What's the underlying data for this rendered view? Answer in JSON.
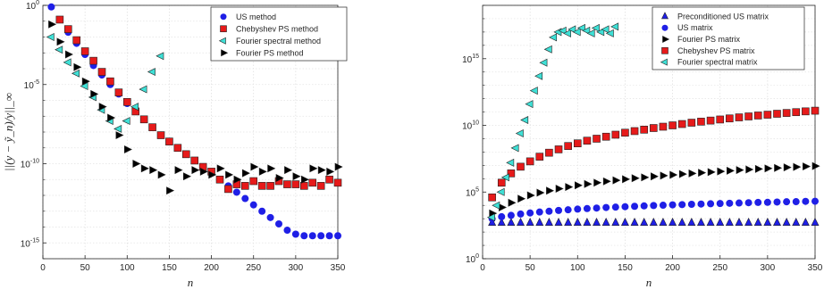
{
  "chart_data": [
    {
      "type": "scatter",
      "title": "",
      "xlabel": "n",
      "ylabel": "||(y − ỹ_n)/y||_∞",
      "x_scale": "linear",
      "y_scale": "log",
      "xlim": [
        0,
        350
      ],
      "ylim_exp": [
        -16,
        0
      ],
      "x_ticks": [
        "0",
        "50",
        "100",
        "150",
        "200",
        "250",
        "300",
        "350"
      ],
      "y_ticks": [
        {
          "base": "10",
          "exp": "0",
          "value": 0
        },
        {
          "base": "10",
          "exp": "-5",
          "value": -5
        },
        {
          "base": "10",
          "exp": "-10",
          "value": -10
        },
        {
          "base": "10",
          "exp": "-15",
          "value": -15
        }
      ],
      "grid": true,
      "legend_position": "top-right",
      "series": [
        {
          "name": "US method",
          "marker": "circle",
          "color": "#1f1fe6",
          "x": [
            10,
            20,
            30,
            40,
            50,
            60,
            70,
            80,
            90,
            100,
            110,
            120,
            130,
            140,
            150,
            160,
            170,
            180,
            190,
            200,
            210,
            220,
            230,
            240,
            250,
            260,
            270,
            280,
            290,
            300,
            310,
            320,
            330,
            340,
            350
          ],
          "log10y": [
            -0.1,
            -0.9,
            -1.7,
            -2.4,
            -3.1,
            -3.8,
            -4.4,
            -5.0,
            -5.6,
            -6.2,
            -6.7,
            -7.2,
            -7.7,
            -8.2,
            -8.6,
            -9.0,
            -9.4,
            -9.8,
            -10.2,
            -10.6,
            -11.0,
            -11.4,
            -11.8,
            -12.2,
            -12.6,
            -13.0,
            -13.4,
            -13.8,
            -14.2,
            -14.45,
            -14.55,
            -14.55,
            -14.55,
            -14.55,
            -14.55
          ]
        },
        {
          "name": "Chebyshev PS method",
          "marker": "square",
          "color": "#e61a1a",
          "x": [
            20,
            30,
            40,
            50,
            60,
            70,
            80,
            90,
            100,
            110,
            120,
            130,
            140,
            150,
            160,
            170,
            180,
            190,
            200,
            210,
            220,
            230,
            240,
            250,
            260,
            270,
            280,
            290,
            300,
            310,
            320,
            330,
            340,
            350
          ],
          "log10y": [
            -0.9,
            -1.5,
            -2.2,
            -2.9,
            -3.5,
            -4.2,
            -4.8,
            -5.5,
            -6.1,
            -6.7,
            -7.2,
            -7.7,
            -8.2,
            -8.6,
            -9.0,
            -9.4,
            -9.8,
            -10.2,
            -10.5,
            -11.0,
            -11.6,
            -11.3,
            -11.4,
            -11.1,
            -11.4,
            -11.4,
            -11.1,
            -11.3,
            -11.3,
            -11.4,
            -11.2,
            -11.4,
            -11.0,
            -11.2
          ]
        },
        {
          "name": "Fourier spectral method",
          "marker": "triangle-left",
          "color": "#3fe0d6",
          "x": [
            10,
            20,
            30,
            40,
            50,
            60,
            70,
            80,
            90,
            100,
            110,
            120,
            130,
            140
          ],
          "log10y": [
            -2.0,
            -2.8,
            -3.6,
            -4.3,
            -5.1,
            -5.8,
            -6.6,
            -7.3,
            -7.8,
            -7.3,
            -6.4,
            -5.3,
            -4.2,
            -3.2
          ]
        },
        {
          "name": "Fourier PS method",
          "marker": "triangle-right",
          "color": "#000000",
          "x": [
            10,
            20,
            30,
            40,
            50,
            60,
            70,
            80,
            90,
            100,
            110,
            120,
            130,
            140,
            150,
            160,
            170,
            180,
            190,
            200,
            210,
            220,
            230,
            240,
            250,
            260,
            270,
            280,
            290,
            300,
            310,
            320,
            330,
            340,
            350
          ],
          "log10y": [
            -1.2,
            -2.3,
            -3.1,
            -3.9,
            -4.8,
            -5.6,
            -6.4,
            -7.1,
            -8.2,
            -9.1,
            -10.0,
            -10.3,
            -10.4,
            -10.7,
            -11.7,
            -10.4,
            -10.8,
            -10.4,
            -10.5,
            -10.7,
            -10.3,
            -10.7,
            -11.0,
            -10.6,
            -10.2,
            -10.5,
            -10.3,
            -10.9,
            -10.4,
            -10.8,
            -11.0,
            -10.3,
            -10.4,
            -10.5,
            -10.2
          ]
        }
      ]
    },
    {
      "type": "scatter",
      "title": "",
      "xlabel": "n",
      "ylabel": "",
      "x_scale": "linear",
      "y_scale": "log",
      "xlim": [
        0,
        350
      ],
      "ylim_exp": [
        0,
        19
      ],
      "x_ticks": [
        "0",
        "50",
        "100",
        "150",
        "200",
        "250",
        "300",
        "350"
      ],
      "y_ticks": [
        {
          "base": "10",
          "exp": "0",
          "value": 0
        },
        {
          "base": "10",
          "exp": "5",
          "value": 5
        },
        {
          "base": "10",
          "exp": "10",
          "value": 10
        },
        {
          "base": "10",
          "exp": "15",
          "value": 15
        }
      ],
      "grid": true,
      "legend_position": "top-right",
      "series": [
        {
          "name": "Preconditioned US matrix",
          "marker": "triangle-up",
          "color": "#1f1fe6",
          "x": [
            10,
            20,
            30,
            40,
            50,
            60,
            70,
            80,
            90,
            100,
            110,
            120,
            130,
            140,
            150,
            160,
            170,
            180,
            190,
            200,
            210,
            220,
            230,
            240,
            250,
            260,
            270,
            280,
            290,
            300,
            310,
            320,
            330,
            340,
            350
          ],
          "log10y": [
            2.7,
            2.7,
            2.7,
            2.7,
            2.7,
            2.7,
            2.7,
            2.7,
            2.7,
            2.7,
            2.7,
            2.7,
            2.7,
            2.7,
            2.7,
            2.7,
            2.7,
            2.7,
            2.7,
            2.7,
            2.7,
            2.7,
            2.7,
            2.7,
            2.7,
            2.7,
            2.7,
            2.7,
            2.7,
            2.7,
            2.7,
            2.7,
            2.7,
            2.7,
            2.7
          ]
        },
        {
          "name": "US matrix",
          "marker": "circle",
          "color": "#1f1fe6",
          "x": [
            10,
            20,
            30,
            40,
            50,
            60,
            70,
            80,
            90,
            100,
            110,
            120,
            130,
            140,
            150,
            160,
            170,
            180,
            190,
            200,
            210,
            220,
            230,
            240,
            250,
            260,
            270,
            280,
            290,
            300,
            310,
            320,
            330,
            340,
            350
          ],
          "log10y": [
            3.0,
            3.15,
            3.25,
            3.35,
            3.43,
            3.5,
            3.56,
            3.62,
            3.67,
            3.72,
            3.76,
            3.8,
            3.84,
            3.87,
            3.9,
            3.93,
            3.96,
            3.99,
            4.01,
            4.04,
            4.06,
            4.08,
            4.1,
            4.12,
            4.14,
            4.16,
            4.18,
            4.2,
            4.22,
            4.23,
            4.25,
            4.27,
            4.28,
            4.3,
            4.31
          ]
        },
        {
          "name": "Fourier PS matrix",
          "marker": "triangle-right",
          "color": "#000000",
          "x": [
            10,
            20,
            30,
            40,
            50,
            60,
            70,
            80,
            90,
            100,
            110,
            120,
            130,
            140,
            150,
            160,
            170,
            180,
            190,
            200,
            210,
            220,
            230,
            240,
            250,
            260,
            270,
            280,
            290,
            300,
            310,
            320,
            330,
            340,
            350
          ],
          "log10y": [
            3.4,
            3.85,
            4.2,
            4.5,
            4.75,
            4.95,
            5.1,
            5.25,
            5.38,
            5.5,
            5.6,
            5.7,
            5.8,
            5.88,
            5.96,
            6.04,
            6.1,
            6.17,
            6.23,
            6.29,
            6.35,
            6.4,
            6.45,
            6.5,
            6.55,
            6.6,
            6.65,
            6.69,
            6.73,
            6.77,
            6.81,
            6.85,
            6.88,
            6.92,
            6.95
          ]
        },
        {
          "name": "Chebyshev PS matrix",
          "marker": "square",
          "color": "#e61a1a",
          "x": [
            10,
            20,
            30,
            40,
            50,
            60,
            70,
            80,
            90,
            100,
            110,
            120,
            130,
            140,
            150,
            160,
            170,
            180,
            190,
            200,
            210,
            220,
            230,
            240,
            250,
            260,
            270,
            280,
            290,
            300,
            310,
            320,
            330,
            340,
            350
          ],
          "log10y": [
            4.6,
            5.7,
            6.4,
            6.9,
            7.3,
            7.65,
            7.95,
            8.2,
            8.45,
            8.65,
            8.85,
            9.0,
            9.15,
            9.3,
            9.45,
            9.57,
            9.68,
            9.8,
            9.9,
            10.0,
            10.1,
            10.2,
            10.28,
            10.36,
            10.44,
            10.52,
            10.6,
            10.67,
            10.74,
            10.8,
            10.87,
            10.93,
            10.99,
            11.05,
            11.1
          ]
        },
        {
          "name": "Fourier spectral matrix",
          "marker": "triangle-left",
          "color": "#3fe0d6",
          "x": [
            10,
            15,
            20,
            25,
            30,
            35,
            40,
            45,
            50,
            55,
            60,
            65,
            70,
            75,
            80,
            85,
            90,
            95,
            100,
            105,
            110,
            115,
            120,
            125,
            130,
            135,
            140
          ],
          "log10y": [
            3.1,
            4.0,
            5.0,
            6.1,
            7.2,
            8.3,
            9.4,
            10.4,
            11.6,
            12.6,
            13.7,
            14.7,
            15.7,
            16.6,
            17.0,
            17.1,
            16.9,
            17.2,
            17.0,
            17.3,
            17.1,
            16.9,
            17.3,
            17.0,
            17.2,
            16.9,
            17.4
          ]
        }
      ]
    }
  ]
}
